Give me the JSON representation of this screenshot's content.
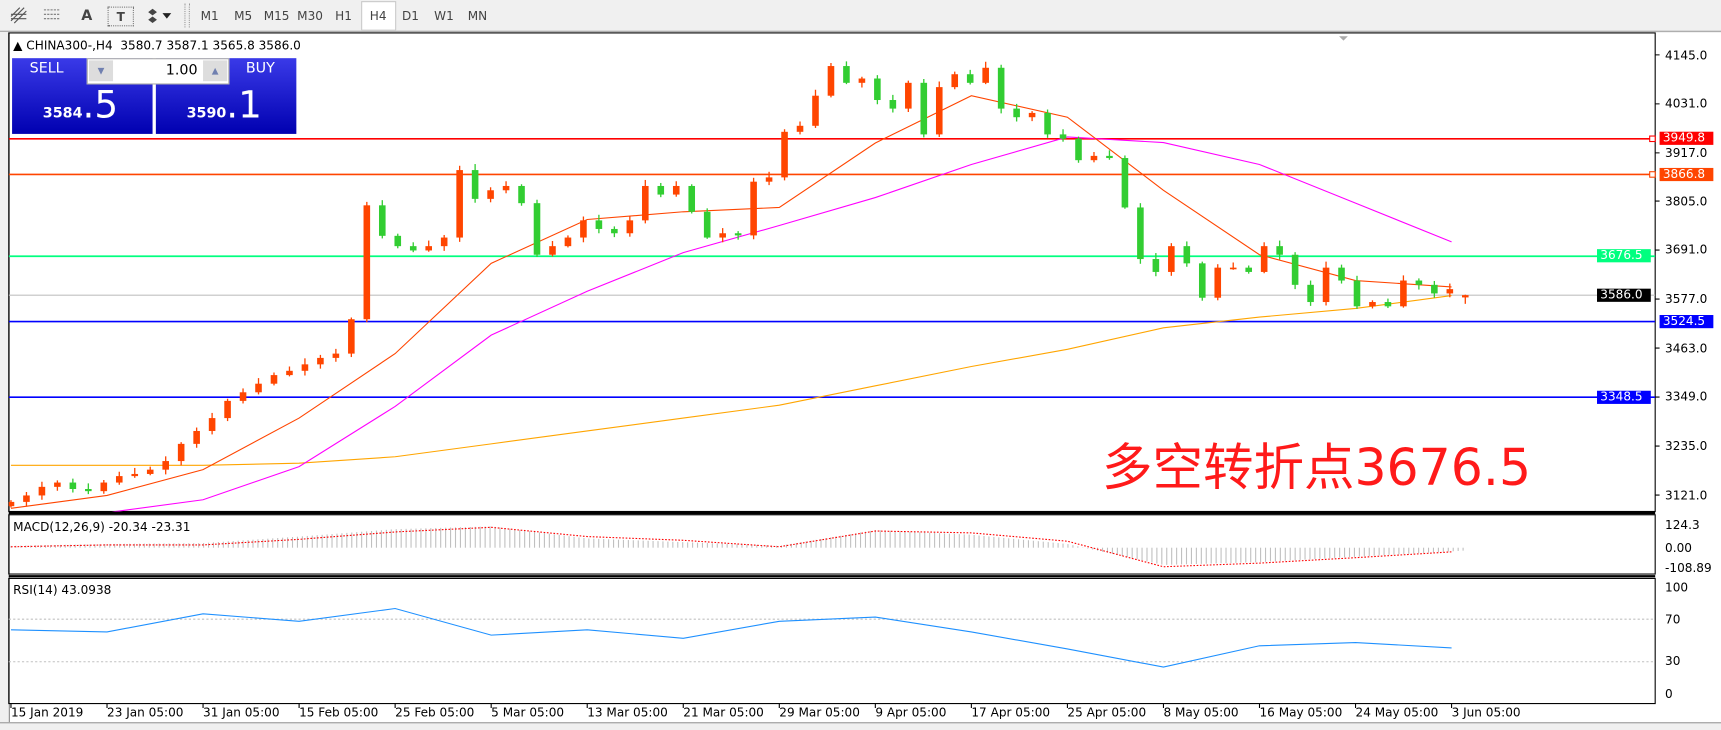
{
  "toolbar": {
    "tools": [
      {
        "icon": "fibonacci-expansion-icon"
      },
      {
        "icon": "fibonacci-fan-icon"
      },
      {
        "label": "A",
        "icon": "text-icon"
      },
      {
        "label": "T",
        "icon": "text-label-icon"
      },
      {
        "icon": "arrows-dropdown-icon"
      }
    ],
    "timeframes": [
      "M1",
      "M5",
      "M15",
      "M30",
      "H1",
      "H4",
      "D1",
      "W1",
      "MN"
    ],
    "active_timeframe": "H4"
  },
  "chart_header": {
    "symbol": "CHINA300-,H4",
    "ohlc": "3580.7 3587.1 3565.8 3586.0"
  },
  "one_click": {
    "sell_label": "SELL",
    "buy_label": "BUY",
    "lot": "1.00",
    "sell_price_main": "3584",
    "sell_price_big": ".5",
    "buy_price_main": "3590",
    "buy_price_big": ".1"
  },
  "annotation": "多空转折点3676.5",
  "colors": {
    "bull": "#ff4500",
    "bear": "#32cd32",
    "ma_fast": "#ff4500",
    "ma_mid": "#ff00ff",
    "ma_slow": "#ffa500",
    "rsi": "#1e90ff",
    "macd_hist": "#c0c0c0",
    "macd_signal": "#ff0000"
  },
  "chart_data": {
    "type": "candlestick",
    "ylim": [
      3090,
      4180
    ],
    "price_ticks": [
      "4145.0",
      "4031.0",
      "3917.0",
      "3805.0",
      "3691.0",
      "3577.0",
      "3463.0",
      "3349.0",
      "3235.0",
      "3121.0"
    ],
    "date_ticks": [
      "15 Jan 2019",
      "23 Jan 05:00",
      "31 Jan 05:00",
      "15 Feb 05:00",
      "25 Feb 05:00",
      "5 Mar 05:00",
      "13 Mar 05:00",
      "21 Mar 05:00",
      "29 Mar 05:00",
      "9 Apr 05:00",
      "17 Apr 05:00",
      "25 Apr 05:00",
      "8 May 05:00",
      "16 May 05:00",
      "24 May 05:00",
      "3 Jun 05:00"
    ],
    "close": [
      3105,
      3120,
      3140,
      3150,
      3135,
      3130,
      3150,
      3165,
      3170,
      3180,
      3200,
      3240,
      3270,
      3300,
      3340,
      3360,
      3380,
      3400,
      3410,
      3425,
      3440,
      3450,
      3530,
      3795,
      3724,
      3700,
      3690,
      3700,
      3720,
      3877,
      3810,
      3830,
      3840,
      3800,
      3680,
      3700,
      3720,
      3760,
      3740,
      3730,
      3760,
      3840,
      3820,
      3840,
      3780,
      3720,
      3730,
      3725,
      3850,
      3860,
      3966,
      3980,
      4050,
      4119,
      4080,
      4090,
      4040,
      4020,
      4080,
      3960,
      4070,
      4100,
      4080,
      4115,
      4020,
      4000,
      4010,
      3960,
      3950,
      3900,
      3910,
      3905,
      3790,
      3670,
      3640,
      3700,
      3660,
      3580,
      3650,
      3650,
      3640,
      3700,
      3680,
      3610,
      3570,
      3650,
      3620,
      3560,
      3570,
      3560,
      3620,
      3610,
      3590,
      3600,
      3586
    ],
    "last_bar": {
      "open": 3580.7,
      "high": 3587.1,
      "low": 3565.8,
      "close": 3586.0
    },
    "moving_averages_at_date_ticks": {
      "fast": [
        3090,
        3120,
        3180,
        3300,
        3450,
        3660,
        3762,
        3780,
        3790,
        3940,
        4050,
        4000,
        3830,
        3680,
        3620,
        3605
      ],
      "mid": [
        3060,
        3080,
        3110,
        3187,
        3327,
        3493,
        3595,
        3685,
        3748,
        3813,
        3890,
        3954,
        3941,
        3890,
        3800,
        3710
      ],
      "slow": [
        3190,
        3190,
        3190,
        3195,
        3210,
        3240,
        3270,
        3300,
        3330,
        3375,
        3420,
        3460,
        3510,
        3535,
        3555,
        3585
      ]
    },
    "hlines": [
      {
        "value": "3949.8",
        "color": "#ff0000"
      },
      {
        "value": "3866.8",
        "color": "#ff4500"
      },
      {
        "value": "3676.5",
        "color": "#00ff7f"
      },
      {
        "value": "3586.0",
        "color": "#c0c0c0",
        "tag": "#000000"
      },
      {
        "value": "3524.5",
        "color": "#0000ff"
      },
      {
        "value": "3348.5",
        "color": "#0000ff"
      }
    ],
    "macd": {
      "label": "MACD(12,26,9) -20.34 -23.31",
      "ticks": [
        "124.3",
        "0.00",
        "-108.89"
      ],
      "ylim": [
        -108.89,
        124.3
      ],
      "hist_at_date_ticks": [
        10,
        20,
        25,
        60,
        100,
        115,
        50,
        30,
        10,
        95,
        70,
        20,
        -95,
        -80,
        -50,
        -20
      ],
      "signal_at_date_ticks": [
        5,
        15,
        15,
        45,
        85,
        110,
        60,
        40,
        5,
        90,
        80,
        35,
        -105,
        -85,
        -55,
        -23
      ]
    },
    "rsi": {
      "label": "RSI(14) 43.0938",
      "ticks": [
        "100",
        "70",
        "30",
        "0"
      ],
      "levels": [
        70,
        30
      ],
      "values_at_date_ticks": [
        60,
        58,
        75,
        68,
        80,
        55,
        60,
        52,
        68,
        72,
        58,
        42,
        25,
        45,
        48,
        43
      ]
    }
  }
}
